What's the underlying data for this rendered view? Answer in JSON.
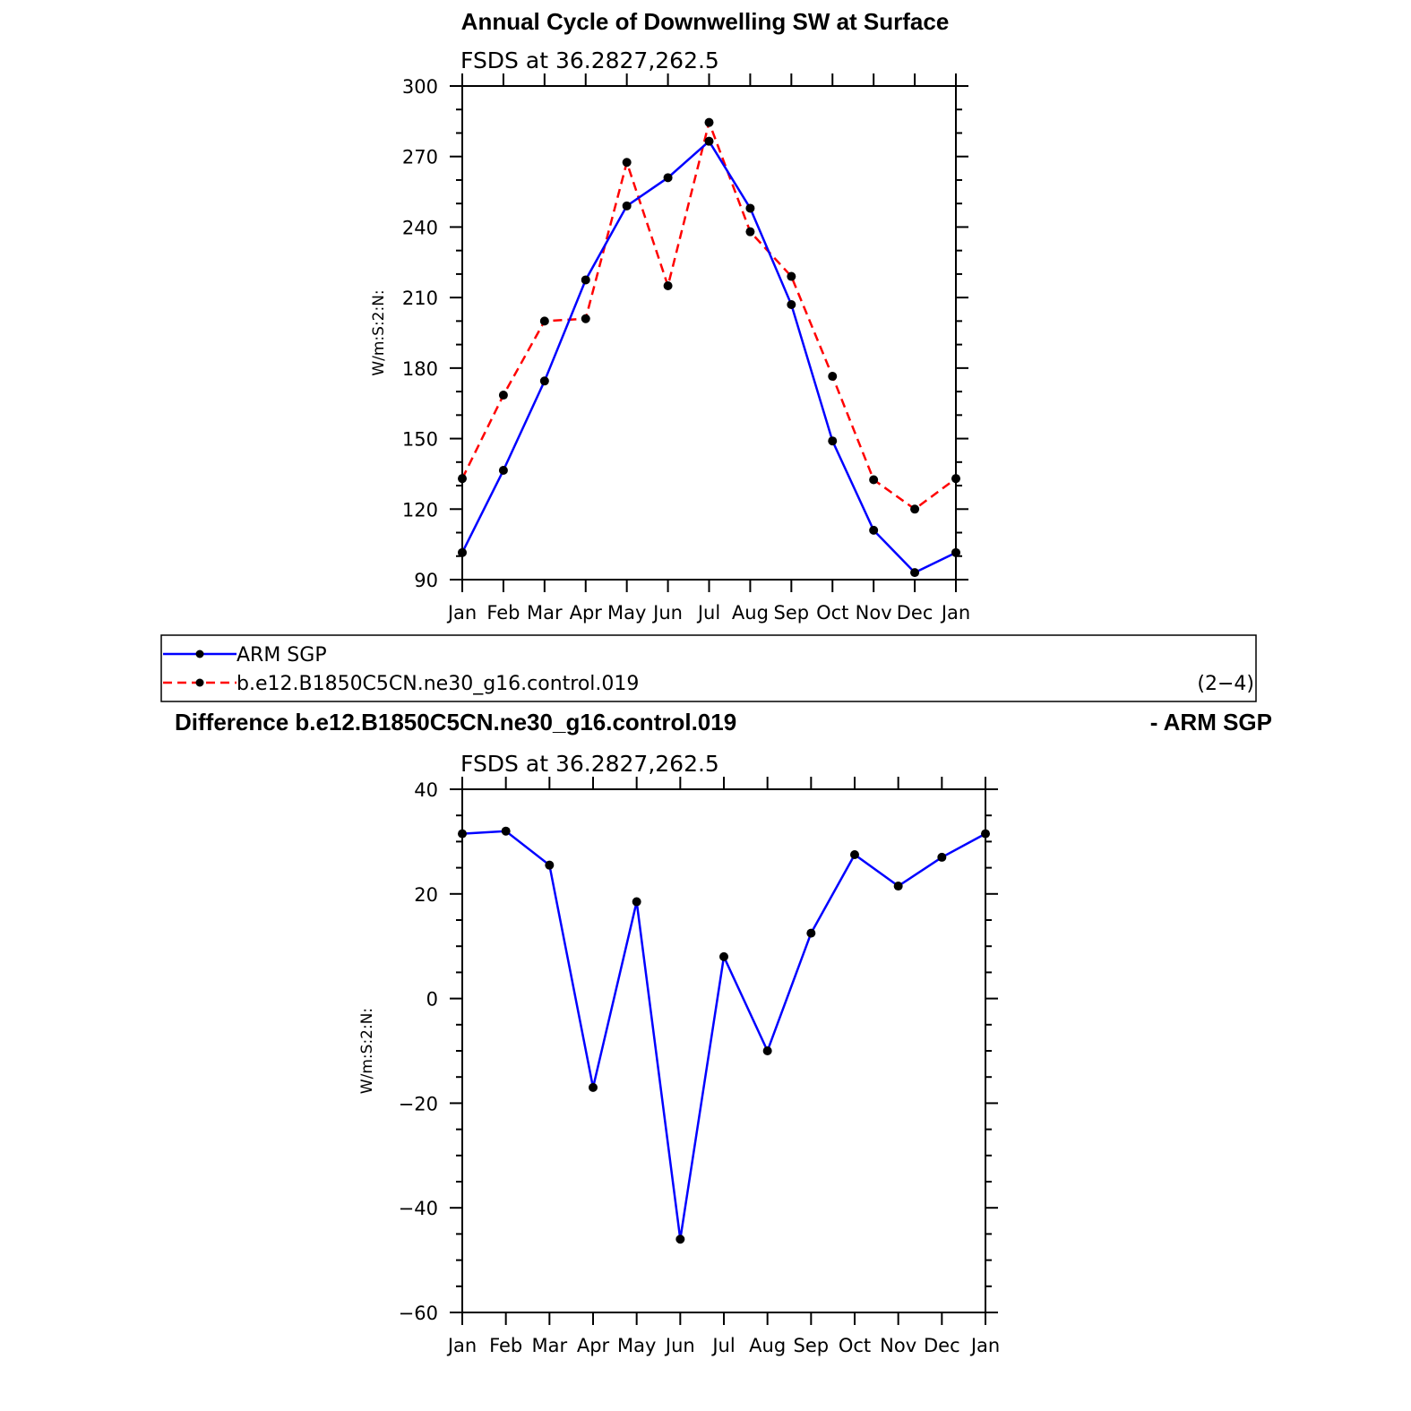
{
  "chart_data": [
    {
      "type": "line",
      "title": "Annual Cycle of Downwelling SW at Surface",
      "subtitle": "FSDS at 36.2827,262.5",
      "ylabel": "W/m:S:2:N:",
      "categories": [
        "Jan",
        "Feb",
        "Mar",
        "Apr",
        "May",
        "Jun",
        "Jul",
        "Aug",
        "Sep",
        "Oct",
        "Nov",
        "Dec",
        "Jan"
      ],
      "ylim": [
        90,
        300
      ],
      "yticks": [
        "90",
        "120",
        "150",
        "180",
        "210",
        "240",
        "270",
        "300"
      ],
      "series": [
        {
          "name": "ARM SGP",
          "color": "#0000ff",
          "dash": "solid",
          "values": [
            101.5,
            136.5,
            174.5,
            217.5,
            249,
            261,
            276.5,
            248,
            207,
            149,
            111,
            93,
            101.5
          ]
        },
        {
          "name": "b.e12.B1850C5CN.ne30_g16.control.019",
          "color": "#ff0000",
          "dash": "dashed",
          "values": [
            133,
            168.5,
            200,
            201,
            267.5,
            215,
            284.5,
            238,
            219,
            176.5,
            132.5,
            120,
            133
          ]
        }
      ]
    },
    {
      "type": "line",
      "title": "Difference b.e12.B1850C5CN.ne30_g16.control.019",
      "title_right": "- ARM SGP",
      "subtitle": "FSDS at 36.2827,262.5",
      "ylabel": "W/m:S:2:N:",
      "categories": [
        "Jan",
        "Feb",
        "Mar",
        "Apr",
        "May",
        "Jun",
        "Jul",
        "Aug",
        "Sep",
        "Oct",
        "Nov",
        "Dec",
        "Jan"
      ],
      "ylim": [
        -60,
        40
      ],
      "yticks": [
        "−60",
        "−40",
        "−20",
        "0",
        "20",
        "40"
      ],
      "series": [
        {
          "color": "#0000ff",
          "dash": "solid",
          "values": [
            31.5,
            32,
            25.5,
            -17,
            18.5,
            -46,
            8,
            -10,
            12.5,
            27.5,
            21.5,
            27,
            31.5
          ]
        }
      ]
    }
  ],
  "legend": {
    "entries": [
      "ARM SGP",
      "b.e12.B1850C5CN.ne30_g16.control.019"
    ],
    "note": "(2−4)"
  }
}
